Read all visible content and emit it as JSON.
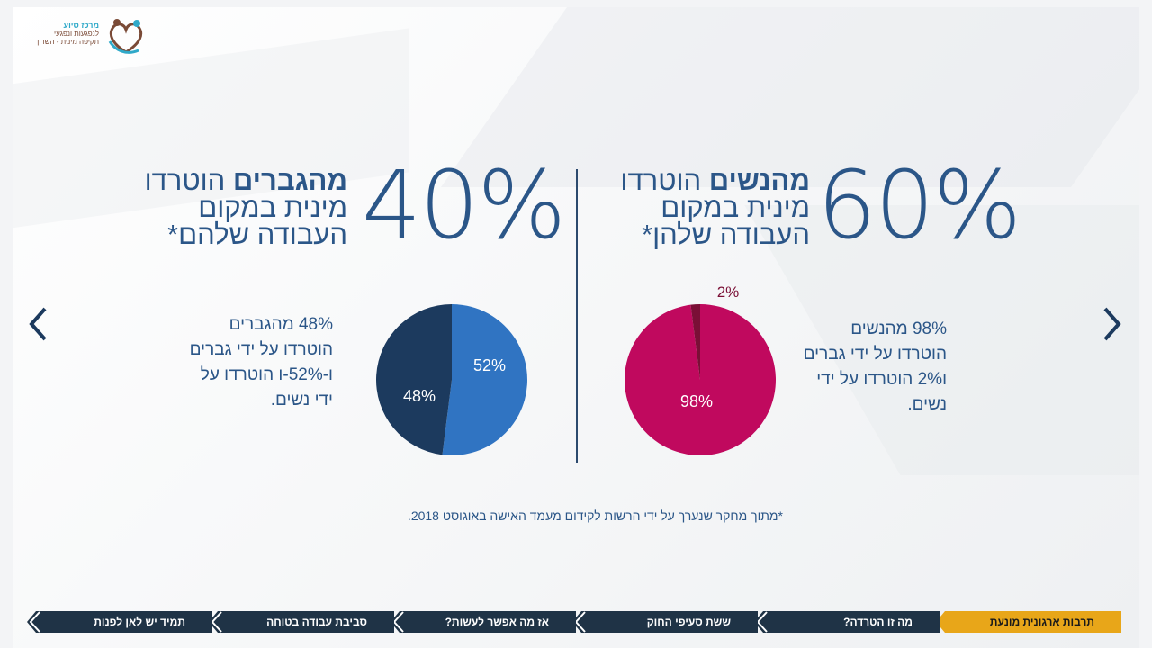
{
  "logo": {
    "line1": "מרכז סיוע",
    "line2": "לנפגעות ונפגעי",
    "line3": "תקיפה מינית - השרון"
  },
  "nav_arrows": {
    "prev": "chevron-left-icon",
    "next": "chevron-right-icon"
  },
  "right_panel": {
    "big_percent": "60%",
    "headline_bold": "מהנשים",
    "headline_rest": " הוטרדו מינית במקום העבודה שלהן*",
    "description": "98% מהנשים הוטרדו על ידי גברים ו2% הוטרדו על ידי נשים."
  },
  "left_panel": {
    "big_percent": "40%",
    "headline_bold": "מהגברים",
    "headline_rest": " הוטרדו מינית במקום העבודה שלהם*",
    "description": "48% מהגברים הוטרדו על ידי גברים ו-52%-ו הוטרדו על ידי נשים."
  },
  "footnote": "*מתוך מחקר שנערך על ידי הרשות לקידום מעמד האישה באוגוסט 2018.",
  "nav_tabs": [
    {
      "label": "תרבות ארגונית מונעת",
      "active": true
    },
    {
      "label": "מה זו הטרדה?",
      "active": false
    },
    {
      "label": "ששת סעיפי החוק",
      "active": false
    },
    {
      "label": "אז מה אפשר לעשות?",
      "active": false
    },
    {
      "label": "סביבת עבודה בטוחה",
      "active": false
    },
    {
      "label": "תמיד יש לאן לפנות",
      "active": false
    }
  ],
  "colors": {
    "women_main": "#c0095e",
    "women_minor": "#7a0f36",
    "men_light": "#3074c2",
    "men_dark": "#1c3a5e",
    "accent": "#e8a619",
    "nav_bg": "#1f3346"
  },
  "chart_data": [
    {
      "type": "pie",
      "categories": [
        "על ידי גברים",
        "על ידי נשים"
      ],
      "values": [
        98,
        2
      ],
      "labels": [
        "98%",
        "2%"
      ]
    },
    {
      "type": "pie",
      "categories": [
        "על ידי נשים",
        "על ידי גברים"
      ],
      "values": [
        52,
        48
      ],
      "labels": [
        "52%",
        "48%"
      ]
    }
  ]
}
